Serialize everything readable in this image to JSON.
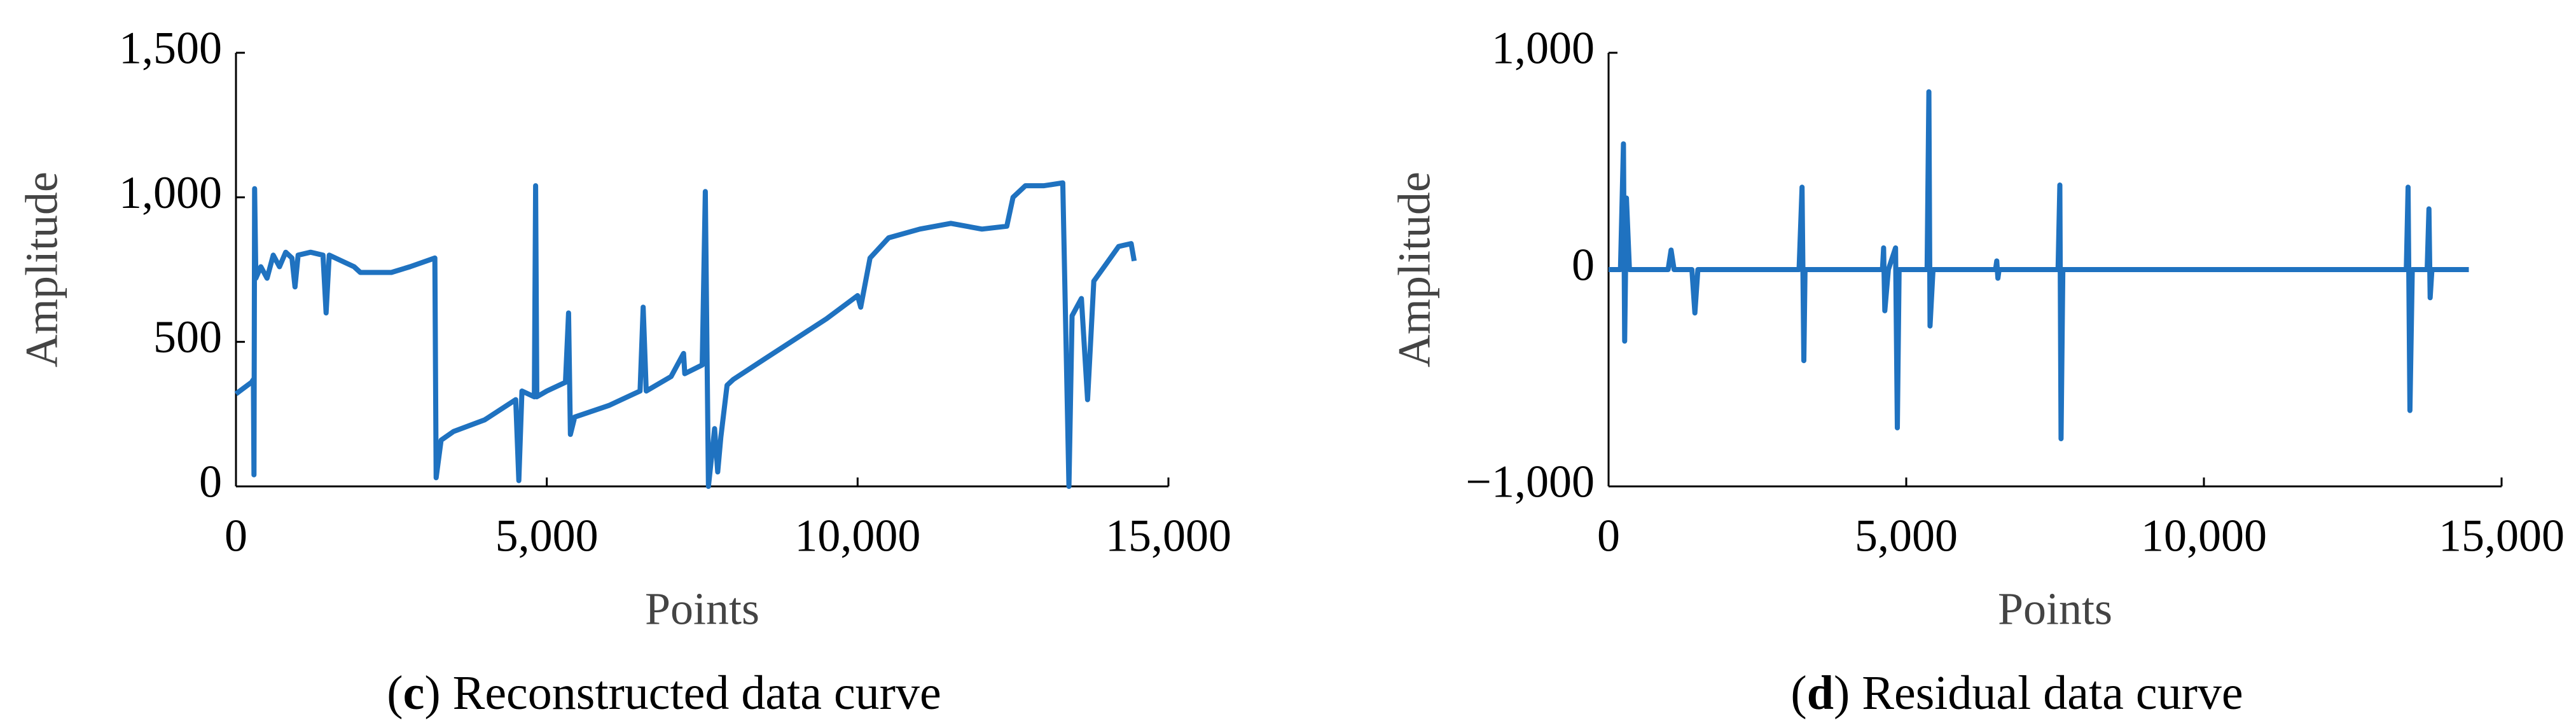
{
  "chart_data": [
    {
      "type": "line",
      "ylabel": "Amplitude",
      "xlabel": "Points",
      "caption": [
        "(",
        "c",
        ") Reconstructed data curve"
      ],
      "color": "#1f72c0",
      "xlim": [
        0,
        15000
      ],
      "ylim": [
        0,
        1500
      ],
      "xticks": [
        0,
        {
          "value": 5000,
          "label": "5,000"
        },
        {
          "value": 10000,
          "label": "10,000"
        },
        {
          "value": 15000,
          "label": "15,000"
        }
      ],
      "yticks": [
        0,
        500,
        {
          "value": 1000,
          "label": "1,000"
        },
        {
          "value": 1500,
          "label": "1,500"
        }
      ],
      "x": [
        0,
        250,
        280,
        290,
        300,
        320,
        400,
        500,
        600,
        700,
        800,
        900,
        950,
        1000,
        1200,
        1400,
        1450,
        1500,
        1700,
        1900,
        2000,
        2500,
        2800,
        3200,
        3220,
        3300,
        3500,
        4000,
        4500,
        4550,
        4600,
        4800,
        4820,
        4840,
        5000,
        5300,
        5350,
        5380,
        5450,
        6000,
        6400,
        6500,
        6550,
        6600,
        7000,
        7200,
        7220,
        7500,
        7550,
        7600,
        7700,
        7750,
        7800,
        7900,
        8000,
        8500,
        9000,
        9500,
        10000,
        10050,
        10200,
        10500,
        11000,
        11500,
        12000,
        12400,
        12500,
        12700,
        13000,
        13300,
        13400,
        13450,
        13600,
        13700,
        13800,
        14000,
        14200,
        14400,
        14450
      ],
      "values": [
        320,
        360,
        370,
        40,
        1030,
        720,
        760,
        720,
        800,
        760,
        810,
        790,
        690,
        800,
        810,
        800,
        600,
        800,
        780,
        760,
        740,
        740,
        760,
        790,
        30,
        160,
        190,
        230,
        300,
        20,
        330,
        310,
        1040,
        310,
        330,
        360,
        600,
        180,
        240,
        280,
        320,
        330,
        620,
        330,
        380,
        460,
        390,
        420,
        1020,
        0,
        200,
        50,
        170,
        350,
        370,
        440,
        510,
        580,
        660,
        620,
        790,
        860,
        890,
        910,
        890,
        900,
        1000,
        1040,
        1040,
        1050,
        0,
        590,
        650,
        300,
        710,
        770,
        830,
        840,
        780
      ]
    },
    {
      "type": "line",
      "ylabel": "Amplitude",
      "xlabel": "Points",
      "caption": [
        "(",
        "d",
        ") Residual data curve"
      ],
      "color": "#1f72c0",
      "xlim": [
        0,
        15000
      ],
      "ylim": [
        -1000,
        1000
      ],
      "xticks": [
        0,
        {
          "value": 5000,
          "label": "5,000"
        },
        {
          "value": 10000,
          "label": "10,000"
        },
        {
          "value": 15000,
          "label": "15,000"
        }
      ],
      "yticks": [
        {
          "value": -1000,
          "label": "−1,000"
        },
        0,
        {
          "value": 1000,
          "label": "1,000"
        }
      ],
      "x": [
        0,
        200,
        250,
        270,
        300,
        350,
        600,
        1000,
        1050,
        1100,
        1400,
        1450,
        1500,
        3200,
        3250,
        3280,
        3300,
        4600,
        4620,
        4640,
        4700,
        4820,
        4850,
        4880,
        5350,
        5380,
        5400,
        5450,
        6500,
        6520,
        6540,
        6560,
        7550,
        7580,
        7600,
        7630,
        8000,
        13400,
        13430,
        13460,
        13500,
        13750,
        13780,
        13800,
        13830,
        14450
      ],
      "values": [
        0,
        0,
        580,
        -330,
        330,
        0,
        0,
        0,
        90,
        0,
        0,
        -200,
        0,
        0,
        380,
        -420,
        0,
        0,
        100,
        -190,
        0,
        100,
        -730,
        0,
        0,
        820,
        -260,
        0,
        0,
        40,
        -40,
        0,
        0,
        390,
        -780,
        0,
        0,
        0,
        380,
        -650,
        0,
        0,
        280,
        -130,
        0,
        0
      ]
    }
  ]
}
